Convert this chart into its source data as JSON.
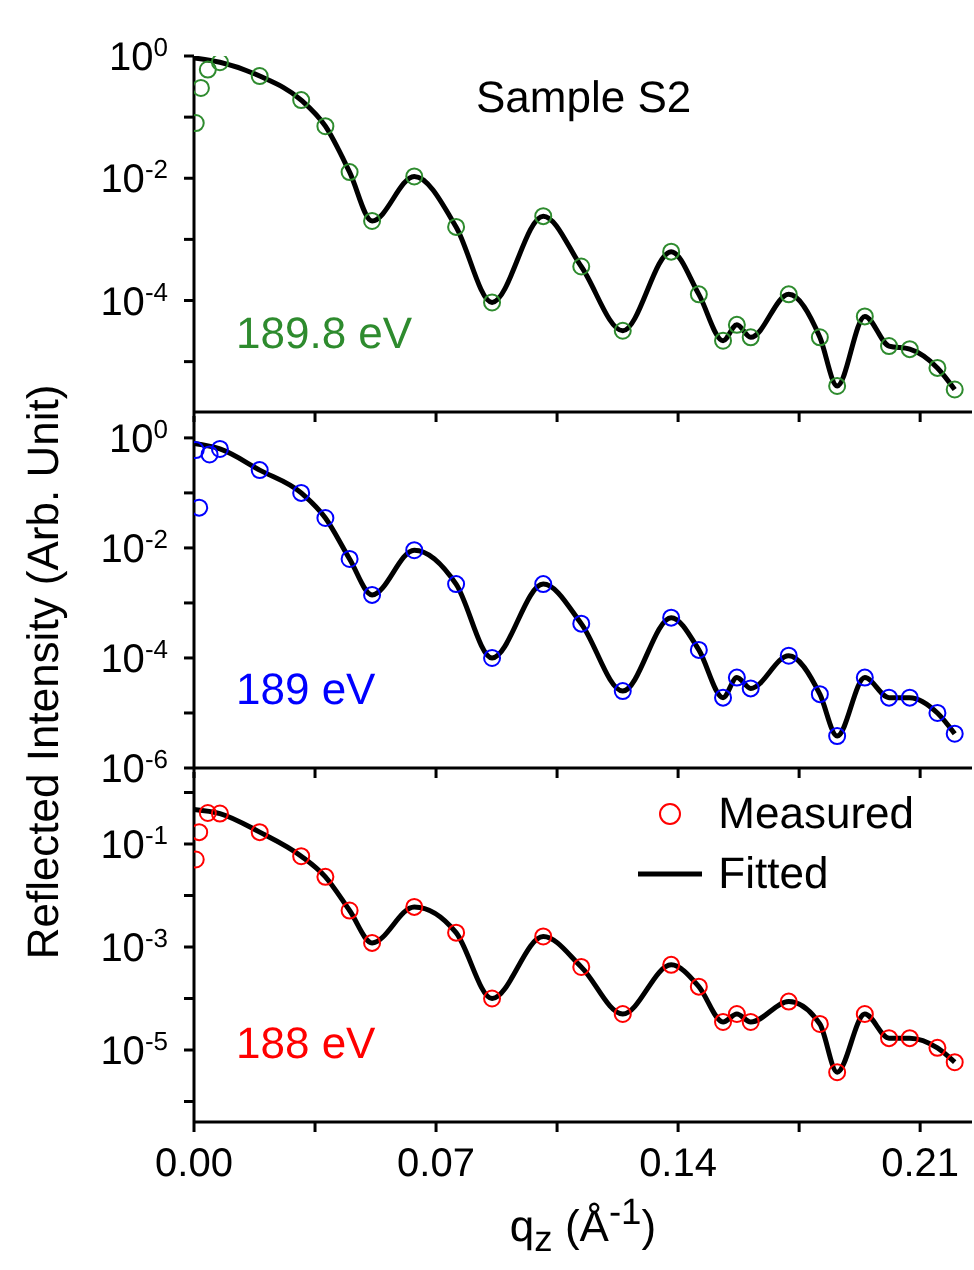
{
  "chart_data": [
    {
      "type": "line",
      "annotations": [
        "Sample S2",
        "189.8 eV"
      ],
      "xlim": [
        0,
        0.225
      ],
      "xticks": [
        {
          "value": 0,
          "label": null
        },
        {
          "value": 0.035,
          "label": null
        },
        {
          "value": 0.07,
          "label": null
        },
        {
          "value": 0.105,
          "label": null
        },
        {
          "value": 0.14,
          "label": null
        },
        {
          "value": 0.175,
          "label": null
        },
        {
          "value": 0.21,
          "label": null
        }
      ],
      "ylim": [
        1.5e-06,
        1
      ],
      "yticks": [
        {
          "value": 1,
          "label": "10$^{0}$"
        },
        {
          "value": 0.1,
          "label": null
        },
        {
          "value": 0.01,
          "label": "10$^{-2}$"
        },
        {
          "value": 0.001,
          "label": null
        },
        {
          "value": 0.0001,
          "label": "10$^{-4}$"
        },
        {
          "value": 1e-05,
          "label": null
        }
      ],
      "log": "y",
      "tick_labels": "y",
      "line_style": "solid",
      "series": [
        {
          "type": "scatter",
          "marker": "circle",
          "color": "#2e8b2e",
          "x": [
            0.0005,
            0.002,
            0.004,
            0.0075,
            0.019,
            0.031,
            0.038,
            0.045,
            0.0515,
            0.0637,
            0.0758,
            0.0862,
            0.101,
            0.112,
            0.124,
            0.138,
            0.146,
            0.153,
            0.157,
            0.161,
            0.172,
            0.181,
            0.186,
            0.194,
            0.201,
            0.207,
            0.215,
            0.22
          ],
          "values": [
            0.08,
            0.3,
            0.6,
            0.79,
            0.47,
            0.19,
            0.071,
            0.0126,
            0.002,
            0.0107,
            0.0016,
            9.3e-05,
            0.0024,
            0.00036,
            3.2e-05,
            0.00063,
            0.000126,
            2.2e-05,
            4e-05,
            2.5e-05,
            0.000126,
            2.5e-05,
            4e-06,
            5.5e-05,
            1.8e-05,
            1.6e-05,
            7.9e-06,
            3.5e-06
          ]
        },
        {
          "type": "line",
          "color": "#000000",
          "x": [
            0,
            0.0075,
            0.019,
            0.031,
            0.038,
            0.045,
            0.0515,
            0.0637,
            0.0758,
            0.0862,
            0.101,
            0.112,
            0.124,
            0.138,
            0.146,
            0.153,
            0.157,
            0.161,
            0.172,
            0.181,
            0.186,
            0.194,
            0.201,
            0.207,
            0.215,
            0.22
          ],
          "values": [
            0.93,
            0.79,
            0.47,
            0.19,
            0.071,
            0.0126,
            0.002,
            0.0107,
            0.0016,
            9.3e-05,
            0.0024,
            0.00036,
            3.2e-05,
            0.00063,
            0.000126,
            2.2e-05,
            4e-05,
            2.5e-05,
            0.000126,
            2.5e-05,
            4e-06,
            5.5e-05,
            1.8e-05,
            1.6e-05,
            7.9e-06,
            3.5e-06
          ]
        }
      ]
    },
    {
      "type": "line",
      "ylabel": "Reflected Intensity (Arb. Unit)",
      "annotations": [
        "189 eV"
      ],
      "xlim": [
        0,
        0.225
      ],
      "xticks": [
        {
          "value": 0,
          "label": null
        },
        {
          "value": 0.035,
          "label": null
        },
        {
          "value": 0.07,
          "label": null
        },
        {
          "value": 0.105,
          "label": null
        },
        {
          "value": 0.14,
          "label": null
        },
        {
          "value": 0.175,
          "label": null
        },
        {
          "value": 0.21,
          "label": null
        }
      ],
      "ylim": [
        1e-06,
        2.5
      ],
      "yticks": [
        {
          "value": 1,
          "label": "10$^{0}$"
        },
        {
          "value": 0.1,
          "label": null
        },
        {
          "value": 0.01,
          "label": "10$^{-2}$"
        },
        {
          "value": 0.001,
          "label": null
        },
        {
          "value": 0.0001,
          "label": "10$^{-4}$"
        },
        {
          "value": 1e-05,
          "label": null
        },
        {
          "value": 1e-06,
          "label": "10$^{-6}$"
        }
      ],
      "log": "y",
      "tick_labels": "y",
      "line_style": "solid",
      "series": [
        {
          "type": "scatter",
          "marker": "circle",
          "color": "#0000ff",
          "x": [
            0.0005,
            0.0015,
            0.0045,
            0.0075,
            0.019,
            0.031,
            0.038,
            0.045,
            0.0515,
            0.0637,
            0.0758,
            0.0862,
            0.101,
            0.112,
            0.124,
            0.138,
            0.146,
            0.153,
            0.157,
            0.161,
            0.172,
            0.181,
            0.186,
            0.194,
            0.201,
            0.207,
            0.215,
            0.22
          ],
          "values": [
            0.6,
            0.054,
            0.5,
            0.63,
            0.26,
            0.1,
            0.035,
            0.0063,
            0.0014,
            0.0091,
            0.0022,
            0.0001,
            0.0022,
            0.00042,
            2.5e-05,
            0.00054,
            0.00014,
            1.9e-05,
            4.4e-05,
            2.8e-05,
            0.00011,
            2.2e-05,
            3.8e-06,
            4.4e-05,
            1.9e-05,
            1.9e-05,
            1e-05,
            4.2e-06
          ]
        },
        {
          "type": "line",
          "color": "#000000",
          "x": [
            0,
            0.0075,
            0.019,
            0.031,
            0.038,
            0.045,
            0.0515,
            0.0637,
            0.0758,
            0.0862,
            0.101,
            0.112,
            0.124,
            0.138,
            0.146,
            0.153,
            0.157,
            0.161,
            0.172,
            0.181,
            0.186,
            0.194,
            0.201,
            0.207,
            0.215,
            0.22
          ],
          "values": [
            0.79,
            0.63,
            0.26,
            0.1,
            0.035,
            0.0063,
            0.0014,
            0.0091,
            0.0022,
            0.0001,
            0.0022,
            0.00042,
            2.5e-05,
            0.00054,
            0.00014,
            1.9e-05,
            4.4e-05,
            2.8e-05,
            0.00011,
            2.2e-05,
            3.8e-06,
            4.4e-05,
            1.9e-05,
            1.9e-05,
            1e-05,
            4.2e-06
          ]
        }
      ]
    },
    {
      "type": "line",
      "xlabel": "q$_{z}$ (Å$^{-1}$)",
      "annotations": [
        "188 eV"
      ],
      "xlim": [
        0,
        0.225
      ],
      "xticks": [
        {
          "value": 0,
          "label": "0.00"
        },
        {
          "value": 0.035,
          "label": null
        },
        {
          "value": 0.07,
          "label": "0.07"
        },
        {
          "value": 0.105,
          "label": null
        },
        {
          "value": 0.14,
          "label": "0.14"
        },
        {
          "value": 0.175,
          "label": null
        },
        {
          "value": 0.21,
          "label": "0.21"
        }
      ],
      "ylim": [
        4e-07,
        2.5
      ],
      "yticks": [
        {
          "value": 1,
          "label": null
        },
        {
          "value": 0.1,
          "label": "10$^{-1}$"
        },
        {
          "value": 0.01,
          "label": null
        },
        {
          "value": 0.001,
          "label": "10$^{-3}$"
        },
        {
          "value": 0.0001,
          "label": null
        },
        {
          "value": 1e-05,
          "label": "10$^{-5}$"
        },
        {
          "value": 1e-06,
          "label": null
        }
      ],
      "log": "y",
      "legend": "top right",
      "line_style": "solid",
      "series": [
        {
          "type": "scatter",
          "marker": "circle",
          "name": "Measured",
          "color": "#ff0000",
          "x": [
            0.0005,
            0.0015,
            0.004,
            0.0075,
            0.019,
            0.031,
            0.038,
            0.045,
            0.0515,
            0.0637,
            0.0758,
            0.0862,
            0.101,
            0.112,
            0.124,
            0.138,
            0.146,
            0.153,
            0.157,
            0.161,
            0.172,
            0.181,
            0.186,
            0.194,
            0.201,
            0.207,
            0.215,
            0.22
          ],
          "values": [
            0.05,
            0.17,
            0.4,
            0.39,
            0.17,
            0.058,
            0.023,
            0.0051,
            0.0012,
            0.006,
            0.0019,
            0.0001,
            0.0016,
            0.00041,
            5e-05,
            0.00045,
            0.00017,
            3.5e-05,
            5e-05,
            3.5e-05,
            8.7e-05,
            3.2e-05,
            3.7e-06,
            5e-05,
            1.7e-05,
            1.7e-05,
            1.1e-05,
            5.8e-06
          ]
        },
        {
          "type": "line",
          "name": "Fitted",
          "color": "#000000",
          "x": [
            0,
            0.0075,
            0.019,
            0.031,
            0.038,
            0.045,
            0.0515,
            0.0637,
            0.0758,
            0.0862,
            0.101,
            0.112,
            0.124,
            0.138,
            0.146,
            0.153,
            0.157,
            0.161,
            0.172,
            0.181,
            0.186,
            0.194,
            0.201,
            0.207,
            0.215,
            0.22
          ],
          "values": [
            0.47,
            0.39,
            0.17,
            0.058,
            0.023,
            0.0051,
            0.0012,
            0.006,
            0.0019,
            0.0001,
            0.0016,
            0.00041,
            5e-05,
            0.00045,
            0.00017,
            3.5e-05,
            5e-05,
            3.5e-05,
            8.7e-05,
            3.2e-05,
            3.7e-06,
            5e-05,
            1.7e-05,
            1.7e-05,
            1.1e-05,
            5.8e-06
          ]
        }
      ]
    }
  ]
}
